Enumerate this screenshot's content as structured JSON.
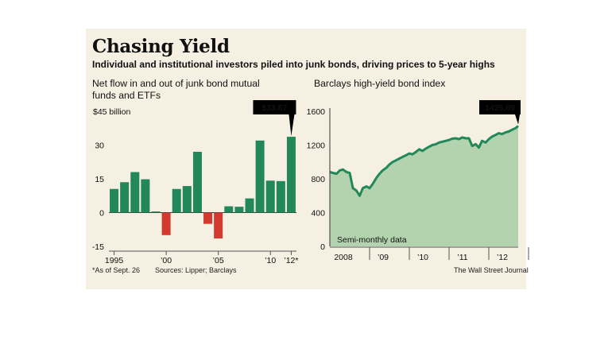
{
  "headline": "Chasing Yield",
  "subhead": "Individual and institutional investors piled into junk bonds, driving prices to 5-year highs",
  "footnote": "*As of Sept. 26",
  "sources": "Sources: Lipper; Barclays",
  "credit": "The Wall Street Journal",
  "colors": {
    "positive": "#22885a",
    "negative": "#d33a2f",
    "line": "#22885a",
    "area": "#b2d3ad",
    "panel": "#f5f0e1"
  },
  "chart_data": [
    {
      "type": "bar",
      "title": "Net flow in and out of junk bond mutual funds and ETFs",
      "unit_label": "$45 billion",
      "ylim": [
        -15,
        45
      ],
      "y_ticks": [
        -15,
        0,
        15,
        30
      ],
      "y_tick_labels": [
        "-15",
        "0",
        "15",
        "30"
      ],
      "categories": [
        "1995",
        "1996",
        "1997",
        "1998",
        "1999",
        "2000",
        "2001",
        "2002",
        "2003",
        "2004",
        "2005",
        "2006",
        "2007",
        "2008",
        "2009",
        "2010",
        "2011",
        "2012"
      ],
      "x_tick_labels": [
        "1995",
        "’00",
        "’05",
        "’10",
        "’12*"
      ],
      "x_tick_years": [
        "1995",
        "2000",
        "2005",
        "2010",
        "2012"
      ],
      "values": [
        10.5,
        13.5,
        18,
        14.8,
        0.5,
        -10,
        10.5,
        11.8,
        27,
        -5,
        -11.5,
        2.8,
        2.6,
        6.3,
        32,
        14.2,
        14,
        33.67
      ],
      "callout": "$33.67",
      "grid": false
    },
    {
      "type": "area",
      "title": "Barclays high-yield bond index",
      "annotation": "Semi-monthly data",
      "ylim": [
        0,
        1600
      ],
      "y_ticks": [
        0,
        400,
        800,
        1200,
        1600
      ],
      "y_tick_labels": [
        "0",
        "400",
        "800",
        "1200",
        "1600"
      ],
      "x_tick_labels": [
        "2008",
        "’09",
        "’10",
        "’11",
        "’12"
      ],
      "x_tick_positions": [
        2008.0,
        2009.0,
        2010.0,
        2011.0,
        2012.0
      ],
      "callout": "1425.69",
      "x": [
        2008.0,
        2008.08,
        2008.17,
        2008.25,
        2008.33,
        2008.42,
        2008.5,
        2008.58,
        2008.67,
        2008.75,
        2008.83,
        2008.92,
        2009.0,
        2009.08,
        2009.17,
        2009.25,
        2009.33,
        2009.42,
        2009.5,
        2009.58,
        2009.67,
        2009.75,
        2009.83,
        2009.92,
        2010.0,
        2010.08,
        2010.17,
        2010.25,
        2010.33,
        2010.42,
        2010.5,
        2010.58,
        2010.67,
        2010.75,
        2010.83,
        2010.92,
        2011.0,
        2011.08,
        2011.17,
        2011.25,
        2011.33,
        2011.42,
        2011.5,
        2011.58,
        2011.67,
        2011.75,
        2011.83,
        2011.92,
        2012.0,
        2012.08,
        2012.17,
        2012.25,
        2012.33,
        2012.42,
        2012.5,
        2012.58,
        2012.67,
        2012.74
      ],
      "values": [
        880,
        870,
        860,
        900,
        910,
        880,
        870,
        690,
        660,
        600,
        690,
        710,
        690,
        740,
        810,
        860,
        900,
        930,
        970,
        1000,
        1020,
        1040,
        1060,
        1080,
        1100,
        1090,
        1120,
        1150,
        1130,
        1160,
        1180,
        1200,
        1210,
        1230,
        1240,
        1250,
        1260,
        1275,
        1280,
        1270,
        1290,
        1280,
        1280,
        1190,
        1210,
        1170,
        1250,
        1230,
        1270,
        1300,
        1320,
        1340,
        1330,
        1350,
        1360,
        1380,
        1400,
        1425.69
      ],
      "grid": false
    }
  ]
}
